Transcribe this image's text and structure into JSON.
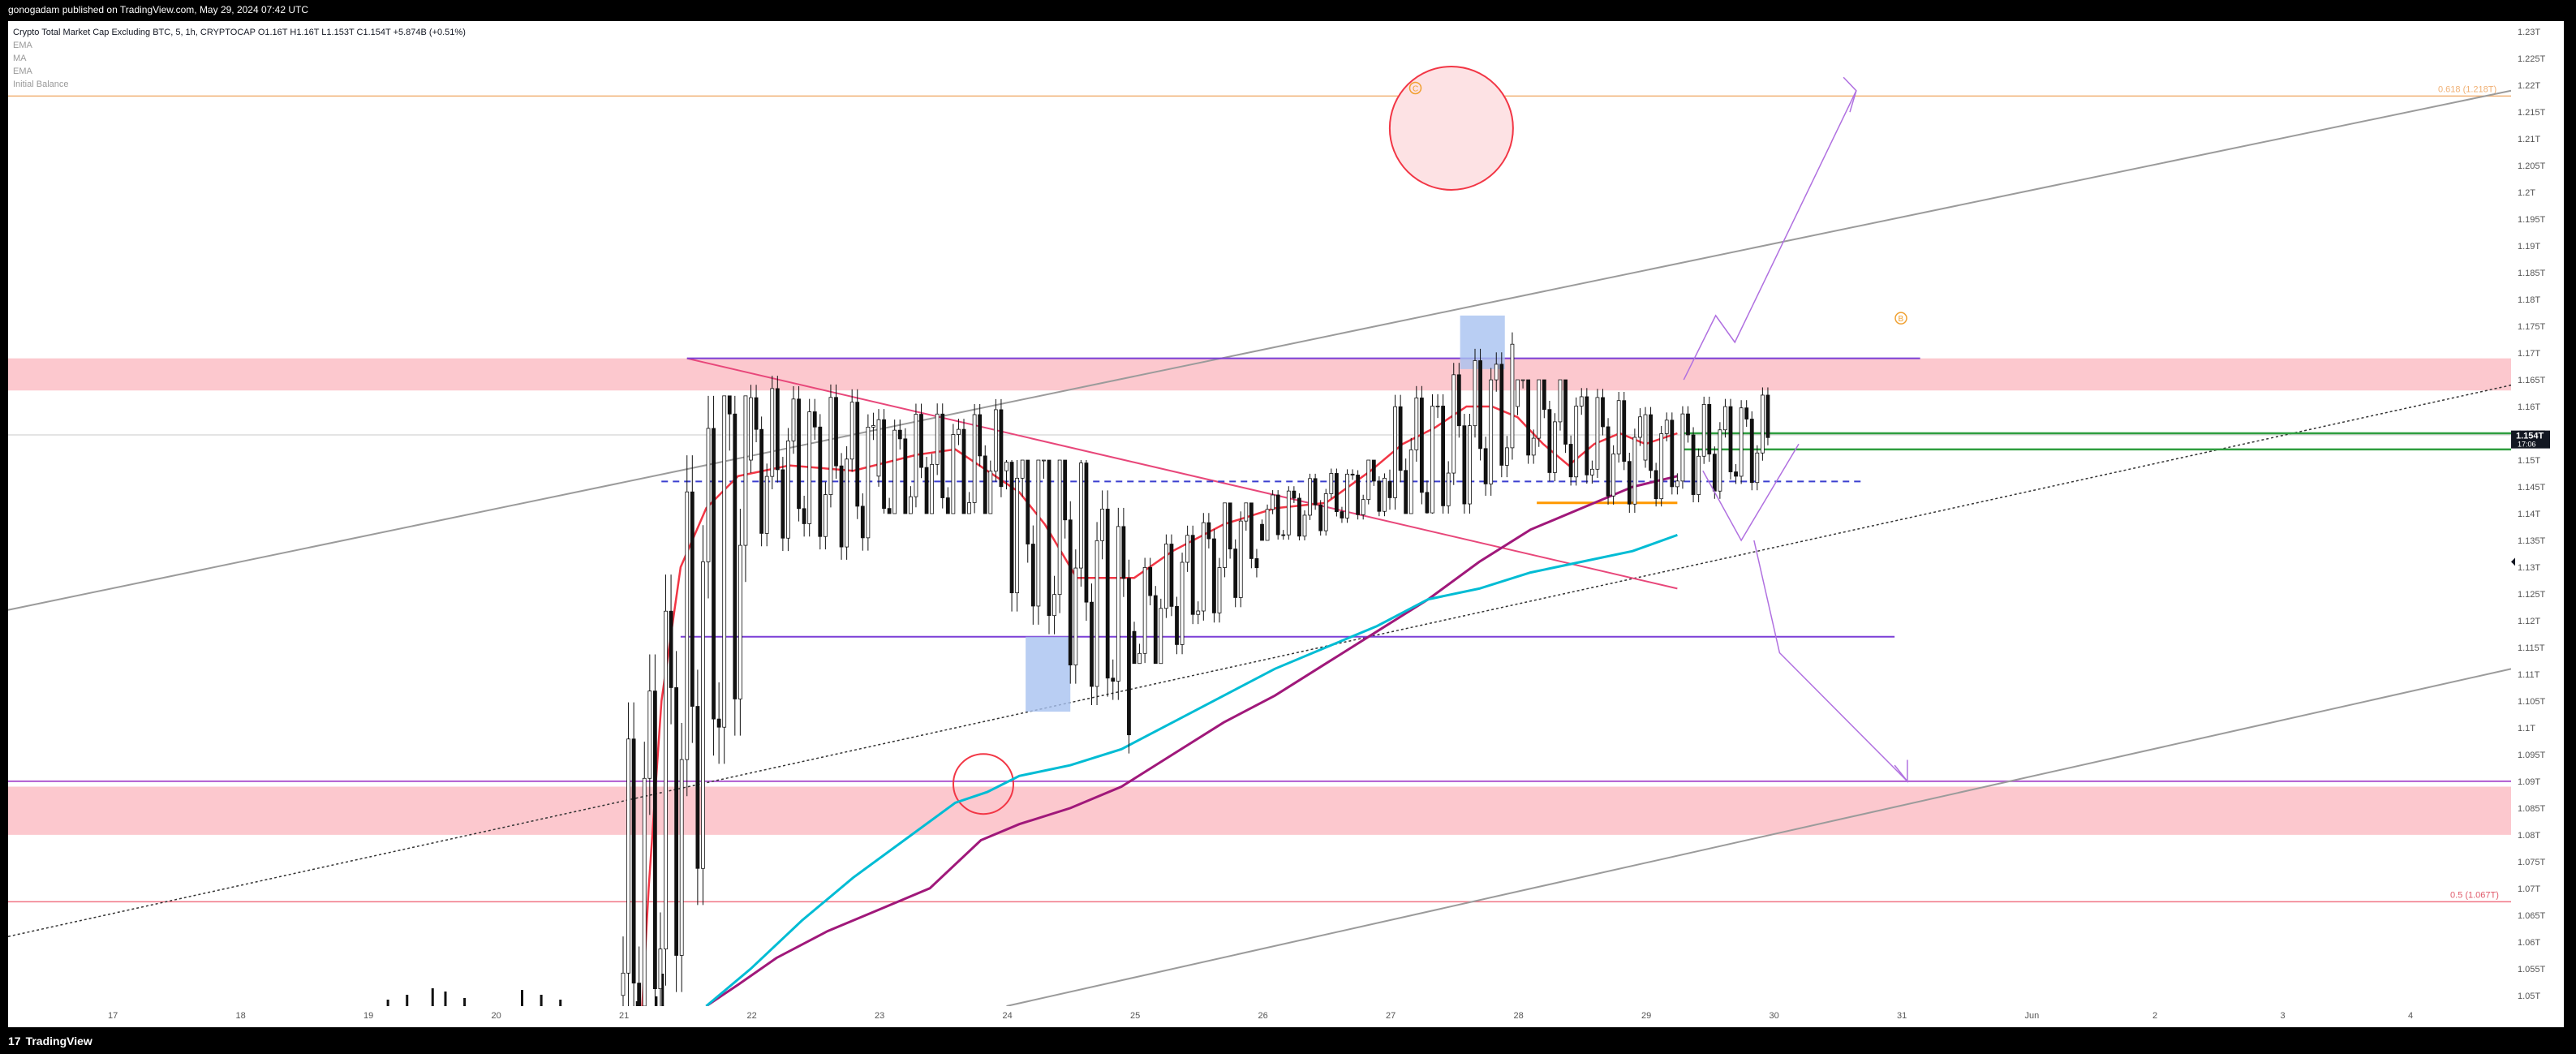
{
  "header": {
    "published": "gonogadam published on TradingView.com, May 29, 2024 07:42 UTC"
  },
  "legend": {
    "symbol": "Crypto Total Market Cap Excluding BTC, 5, 1h, CRYPTOCAP",
    "ohlc": "O1.16T H1.16T L1.153T C1.154T +5.874B (+0.51%)",
    "indicators": [
      "EMA",
      "MA",
      "EMA",
      "Initial Balance"
    ]
  },
  "footer": {
    "brand": "TradingView"
  },
  "colors": {
    "zone": "#fcc8ce",
    "price_red": "#f23645",
    "ema_cyan": "#00bcd4",
    "ma_purple": "#a0187a",
    "purple_line": "#7b3fd6",
    "green_line": "#2e9e3f",
    "orange_line": "#ff9800",
    "fib_orange": "#f0b074"
  },
  "chart_data": {
    "type": "candlestick",
    "y_axis": {
      "ticks": [
        "1.05T",
        "1.055T",
        "1.06T",
        "1.065T",
        "1.07T",
        "1.075T",
        "1.08T",
        "1.085T",
        "1.09T",
        "1.095T",
        "1.1T",
        "1.105T",
        "1.11T",
        "1.115T",
        "1.12T",
        "1.125T",
        "1.13T",
        "1.135T",
        "1.14T",
        "1.145T",
        "1.15T",
        "1.155T",
        "1.16T",
        "1.165T",
        "1.17T",
        "1.175T",
        "1.18T",
        "1.185T",
        "1.19T",
        "1.195T",
        "1.2T",
        "1.205T",
        "1.21T",
        "1.215T",
        "1.22T",
        "1.225T",
        "1.23T"
      ],
      "range": [
        1.048,
        1.232
      ],
      "current_price_label": "1.154T",
      "countdown_label": "17:06"
    },
    "x_axis": {
      "ticks": [
        "17",
        "18",
        "19",
        "20",
        "21",
        "22",
        "23",
        "24",
        "25",
        "26",
        "27",
        "28",
        "29",
        "30",
        "31",
        "Jun",
        "2",
        "3",
        "4"
      ]
    },
    "candles_by_day": [
      {
        "day": "21",
        "open": 1.05,
        "high": 1.162,
        "low": 1.048,
        "close": 1.15
      },
      {
        "day": "22",
        "open": 1.15,
        "high": 1.168,
        "low": 1.128,
        "close": 1.147
      },
      {
        "day": "23",
        "open": 1.147,
        "high": 1.173,
        "low": 1.14,
        "close": 1.148
      },
      {
        "day": "24",
        "open": 1.148,
        "high": 1.15,
        "low": 1.092,
        "close": 1.118
      },
      {
        "day": "25",
        "open": 1.118,
        "high": 1.142,
        "low": 1.112,
        "close": 1.138
      },
      {
        "day": "26",
        "open": 1.138,
        "high": 1.15,
        "low": 1.135,
        "close": 1.146
      },
      {
        "day": "27",
        "open": 1.146,
        "high": 1.177,
        "low": 1.14,
        "close": 1.16
      },
      {
        "day": "28",
        "open": 1.16,
        "high": 1.165,
        "low": 1.138,
        "close": 1.15
      },
      {
        "day": "29",
        "open": 1.15,
        "high": 1.164,
        "low": 1.14,
        "close": 1.154
      }
    ],
    "levels": {
      "resistance_zone": [
        1.163,
        1.169
      ],
      "support_zone": [
        1.08,
        1.089
      ],
      "upper_purple": 1.169,
      "lower_purple": 1.117,
      "dashed_mid": 1.146,
      "green_upper": 1.155,
      "green_lower": 1.152,
      "orange_short": 1.142,
      "fib_top": {
        "label": "0.618 (1.218T)",
        "value": 1.218
      },
      "fib_bottom": {
        "label": "0.5 (1.067T)",
        "value": 1.0675
      },
      "support_line": 1.09
    },
    "markers": [
      {
        "label": "C",
        "day": 27.2,
        "value": 1.2195
      },
      {
        "label": "B",
        "day": 31.0,
        "value": 1.1765
      }
    ]
  }
}
